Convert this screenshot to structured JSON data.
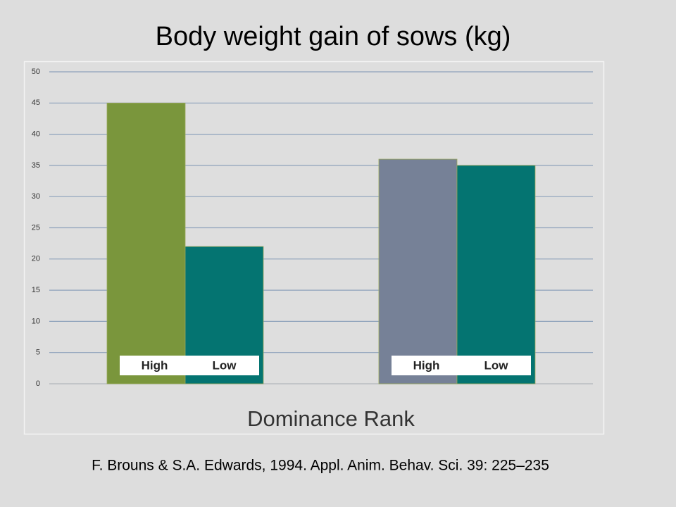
{
  "chart_data": {
    "type": "bar",
    "title": "Body weight gain of sows (kg)",
    "x_label": "Dominance Rank",
    "source": "F. Brouns & S.A. Edwards, 1994. Appl. Anim. Behav. Sci. 39: 225–235",
    "categories": [
      "High",
      "Low",
      "High",
      "Low"
    ],
    "values": [
      45,
      22,
      36,
      35
    ],
    "colors": [
      "#7a963c",
      "#047471",
      "#768197",
      "#047471"
    ],
    "ylim": [
      0,
      50
    ],
    "yticks": [
      0,
      5,
      10,
      15,
      20,
      25,
      30,
      35,
      40,
      45,
      50
    ],
    "grid": true
  }
}
